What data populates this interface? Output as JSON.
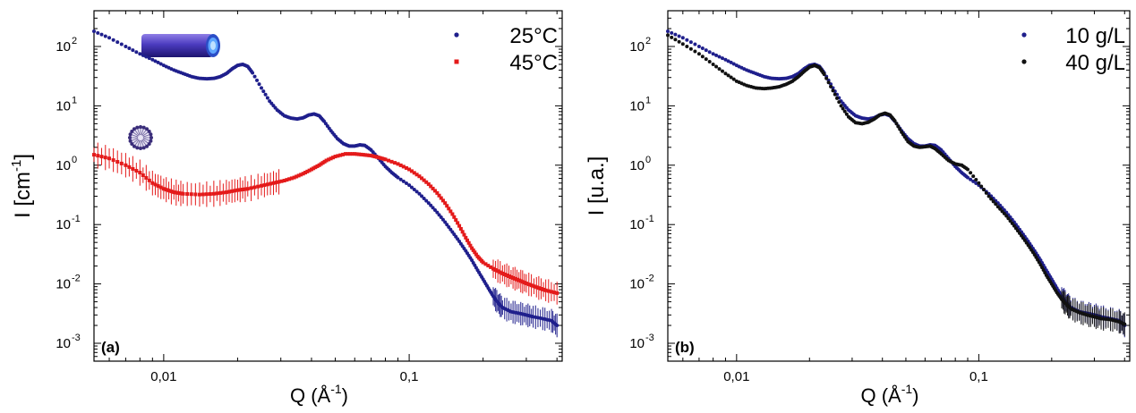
{
  "chart_data": [
    {
      "panel_label": "(a)",
      "type": "scatter",
      "xscale": "log",
      "yscale": "log",
      "xlabel": "Q (Å",
      "xlabel_sup": "-1",
      "xlabel_end": ")",
      "ylabel": "I [cm",
      "ylabel_sup": "-1",
      "ylabel_end": "]",
      "xlim": [
        0.0052,
        0.42
      ],
      "ylim": [
        0.0005,
        400
      ],
      "xticks": [
        {
          "value": 0.01,
          "label": "0,01"
        },
        {
          "value": 0.1,
          "label": "0,1"
        }
      ],
      "yticks": [
        {
          "value": 0.001,
          "base": "10",
          "exp": "-3"
        },
        {
          "value": 0.01,
          "base": "10",
          "exp": "-2"
        },
        {
          "value": 0.1,
          "base": "10",
          "exp": "-1"
        },
        {
          "value": 1,
          "base": "10",
          "exp": "0"
        },
        {
          "value": 10,
          "base": "10",
          "exp": "1"
        },
        {
          "value": 100,
          "base": "10",
          "exp": "2"
        }
      ],
      "legend_position": "top-right",
      "series": [
        {
          "name": "25°C",
          "color": "#1f1f8c",
          "marker": "circle",
          "points": [
            [
              0.0052,
              180
            ],
            [
              0.006,
              140
            ],
            [
              0.007,
              100
            ],
            [
              0.008,
              75
            ],
            [
              0.009,
              60
            ],
            [
              0.01,
              48
            ],
            [
              0.011,
              40
            ],
            [
              0.012,
              35
            ],
            [
              0.013,
              31
            ],
            [
              0.014,
              29
            ],
            [
              0.015,
              28.5
            ],
            [
              0.016,
              29
            ],
            [
              0.017,
              31
            ],
            [
              0.018,
              35
            ],
            [
              0.019,
              42
            ],
            [
              0.02,
              48
            ],
            [
              0.021,
              50
            ],
            [
              0.022,
              46
            ],
            [
              0.023,
              36
            ],
            [
              0.025,
              20
            ],
            [
              0.027,
              12
            ],
            [
              0.029,
              8.5
            ],
            [
              0.031,
              6.8
            ],
            [
              0.033,
              6.2
            ],
            [
              0.035,
              6
            ],
            [
              0.037,
              6.3
            ],
            [
              0.039,
              7
            ],
            [
              0.041,
              7.3
            ],
            [
              0.043,
              6.8
            ],
            [
              0.045,
              5.5
            ],
            [
              0.048,
              3.8
            ],
            [
              0.051,
              2.8
            ],
            [
              0.054,
              2.3
            ],
            [
              0.057,
              2.1
            ],
            [
              0.06,
              2.1
            ],
            [
              0.063,
              2.2
            ],
            [
              0.066,
              2.15
            ],
            [
              0.07,
              1.8
            ],
            [
              0.075,
              1.3
            ],
            [
              0.08,
              0.95
            ],
            [
              0.085,
              0.75
            ],
            [
              0.09,
              0.62
            ],
            [
              0.1,
              0.46
            ],
            [
              0.11,
              0.33
            ],
            [
              0.12,
              0.23
            ],
            [
              0.13,
              0.16
            ],
            [
              0.14,
              0.11
            ],
            [
              0.15,
              0.075
            ],
            [
              0.16,
              0.052
            ],
            [
              0.17,
              0.036
            ],
            [
              0.18,
              0.025
            ],
            [
              0.19,
              0.017
            ],
            [
              0.2,
              0.012
            ],
            [
              0.21,
              0.0085
            ],
            [
              0.22,
              0.0062
            ],
            [
              0.23,
              0.0048
            ],
            [
              0.24,
              0.004
            ],
            [
              0.26,
              0.0034
            ],
            [
              0.28,
              0.0032
            ],
            [
              0.3,
              0.003
            ],
            [
              0.32,
              0.0028
            ],
            [
              0.35,
              0.0026
            ],
            [
              0.38,
              0.0024
            ],
            [
              0.4,
              0.002
            ]
          ]
        },
        {
          "name": "45°C",
          "color": "#e41a1a",
          "marker": "square",
          "points": [
            [
              0.0052,
              1.5
            ],
            [
              0.006,
              1.3
            ],
            [
              0.007,
              1.0
            ],
            [
              0.008,
              0.75
            ],
            [
              0.009,
              0.5
            ],
            [
              0.01,
              0.4
            ],
            [
              0.011,
              0.35
            ],
            [
              0.012,
              0.33
            ],
            [
              0.014,
              0.32
            ],
            [
              0.016,
              0.33
            ],
            [
              0.018,
              0.35
            ],
            [
              0.02,
              0.38
            ],
            [
              0.022,
              0.4
            ],
            [
              0.025,
              0.45
            ],
            [
              0.028,
              0.5
            ],
            [
              0.031,
              0.55
            ],
            [
              0.034,
              0.62
            ],
            [
              0.037,
              0.72
            ],
            [
              0.04,
              0.85
            ],
            [
              0.043,
              1.0
            ],
            [
              0.046,
              1.2
            ],
            [
              0.05,
              1.4
            ],
            [
              0.055,
              1.55
            ],
            [
              0.06,
              1.55
            ],
            [
              0.065,
              1.5
            ],
            [
              0.07,
              1.45
            ],
            [
              0.075,
              1.35
            ],
            [
              0.08,
              1.25
            ],
            [
              0.09,
              1.05
            ],
            [
              0.1,
              0.85
            ],
            [
              0.11,
              0.65
            ],
            [
              0.12,
              0.48
            ],
            [
              0.13,
              0.34
            ],
            [
              0.14,
              0.23
            ],
            [
              0.15,
              0.15
            ],
            [
              0.16,
              0.095
            ],
            [
              0.17,
              0.06
            ],
            [
              0.18,
              0.04
            ],
            [
              0.19,
              0.029
            ],
            [
              0.2,
              0.023
            ],
            [
              0.22,
              0.018
            ],
            [
              0.24,
              0.015
            ],
            [
              0.26,
              0.013
            ],
            [
              0.28,
              0.0115
            ],
            [
              0.3,
              0.0102
            ],
            [
              0.33,
              0.0088
            ],
            [
              0.36,
              0.0078
            ],
            [
              0.4,
              0.007
            ]
          ]
        }
      ]
    },
    {
      "panel_label": "(b)",
      "type": "scatter",
      "xscale": "log",
      "yscale": "log",
      "xlabel": "Q (Å",
      "xlabel_sup": "-1",
      "xlabel_end": ")",
      "ylabel": "I [u.a.]",
      "ylabel_sup": "",
      "ylabel_end": "",
      "xlim": [
        0.0052,
        0.42
      ],
      "ylim": [
        0.0005,
        400
      ],
      "xticks": [
        {
          "value": 0.01,
          "label": "0,01"
        },
        {
          "value": 0.1,
          "label": "0,1"
        }
      ],
      "yticks": [
        {
          "value": 0.001,
          "base": "10",
          "exp": "-3"
        },
        {
          "value": 0.01,
          "base": "10",
          "exp": "-2"
        },
        {
          "value": 0.1,
          "base": "10",
          "exp": "-1"
        },
        {
          "value": 1,
          "base": "10",
          "exp": "0"
        },
        {
          "value": 10,
          "base": "10",
          "exp": "1"
        },
        {
          "value": 100,
          "base": "10",
          "exp": "2"
        }
      ],
      "legend_position": "top-right",
      "series": [
        {
          "name": "10 g/L",
          "color": "#1f1f8c",
          "marker": "circle",
          "points": [
            [
              0.0052,
              180
            ],
            [
              0.006,
              140
            ],
            [
              0.007,
              100
            ],
            [
              0.008,
              75
            ],
            [
              0.009,
              60
            ],
            [
              0.01,
              48
            ],
            [
              0.011,
              40
            ],
            [
              0.012,
              35
            ],
            [
              0.013,
              31
            ],
            [
              0.014,
              29
            ],
            [
              0.015,
              28.5
            ],
            [
              0.016,
              29
            ],
            [
              0.017,
              31
            ],
            [
              0.018,
              35
            ],
            [
              0.019,
              42
            ],
            [
              0.02,
              48
            ],
            [
              0.021,
              50
            ],
            [
              0.022,
              46
            ],
            [
              0.023,
              36
            ],
            [
              0.025,
              20
            ],
            [
              0.027,
              12
            ],
            [
              0.029,
              8.5
            ],
            [
              0.031,
              6.8
            ],
            [
              0.033,
              6.2
            ],
            [
              0.035,
              6
            ],
            [
              0.037,
              6.3
            ],
            [
              0.039,
              7
            ],
            [
              0.041,
              7.3
            ],
            [
              0.043,
              6.8
            ],
            [
              0.045,
              5.5
            ],
            [
              0.048,
              3.8
            ],
            [
              0.051,
              2.8
            ],
            [
              0.054,
              2.3
            ],
            [
              0.057,
              2.1
            ],
            [
              0.06,
              2.1
            ],
            [
              0.063,
              2.2
            ],
            [
              0.066,
              2.15
            ],
            [
              0.07,
              1.8
            ],
            [
              0.075,
              1.3
            ],
            [
              0.08,
              0.95
            ],
            [
              0.085,
              0.75
            ],
            [
              0.09,
              0.62
            ],
            [
              0.1,
              0.46
            ],
            [
              0.11,
              0.33
            ],
            [
              0.12,
              0.23
            ],
            [
              0.13,
              0.16
            ],
            [
              0.14,
              0.11
            ],
            [
              0.15,
              0.075
            ],
            [
              0.16,
              0.052
            ],
            [
              0.17,
              0.036
            ],
            [
              0.18,
              0.025
            ],
            [
              0.19,
              0.017
            ],
            [
              0.2,
              0.012
            ],
            [
              0.21,
              0.0085
            ],
            [
              0.22,
              0.0062
            ],
            [
              0.23,
              0.0048
            ],
            [
              0.24,
              0.004
            ],
            [
              0.26,
              0.0034
            ],
            [
              0.28,
              0.0032
            ],
            [
              0.3,
              0.003
            ],
            [
              0.32,
              0.0028
            ],
            [
              0.35,
              0.0026
            ],
            [
              0.38,
              0.0024
            ],
            [
              0.4,
              0.002
            ]
          ]
        },
        {
          "name": "40 g/L",
          "color": "#111111",
          "marker": "circle",
          "points": [
            [
              0.0052,
              155
            ],
            [
              0.006,
              110
            ],
            [
              0.007,
              75
            ],
            [
              0.008,
              50
            ],
            [
              0.009,
              35
            ],
            [
              0.01,
              26
            ],
            [
              0.011,
              22
            ],
            [
              0.012,
              20
            ],
            [
              0.013,
              19.5
            ],
            [
              0.014,
              20
            ],
            [
              0.015,
              21
            ],
            [
              0.016,
              23
            ],
            [
              0.017,
              26
            ],
            [
              0.018,
              31
            ],
            [
              0.019,
              38
            ],
            [
              0.02,
              45
            ],
            [
              0.021,
              48
            ],
            [
              0.022,
              44
            ],
            [
              0.023,
              34
            ],
            [
              0.025,
              18
            ],
            [
              0.027,
              10
            ],
            [
              0.029,
              6.5
            ],
            [
              0.031,
              5.2
            ],
            [
              0.033,
              5
            ],
            [
              0.035,
              5.3
            ],
            [
              0.037,
              6
            ],
            [
              0.039,
              7
            ],
            [
              0.041,
              7.5
            ],
            [
              0.043,
              7
            ],
            [
              0.045,
              5.6
            ],
            [
              0.048,
              3.6
            ],
            [
              0.051,
              2.5
            ],
            [
              0.054,
              2.1
            ],
            [
              0.057,
              2
            ],
            [
              0.06,
              2.05
            ],
            [
              0.063,
              2.1
            ],
            [
              0.066,
              1.9
            ],
            [
              0.07,
              1.55
            ],
            [
              0.075,
              1.2
            ],
            [
              0.08,
              1.05
            ],
            [
              0.085,
              1.0
            ],
            [
              0.09,
              0.85
            ],
            [
              0.1,
              0.5
            ],
            [
              0.11,
              0.3
            ],
            [
              0.12,
              0.2
            ],
            [
              0.13,
              0.14
            ],
            [
              0.14,
              0.095
            ],
            [
              0.15,
              0.065
            ],
            [
              0.16,
              0.045
            ],
            [
              0.17,
              0.031
            ],
            [
              0.18,
              0.021
            ],
            [
              0.19,
              0.014
            ],
            [
              0.2,
              0.01
            ],
            [
              0.21,
              0.0072
            ],
            [
              0.22,
              0.0055
            ],
            [
              0.23,
              0.0045
            ],
            [
              0.24,
              0.0038
            ],
            [
              0.26,
              0.0033
            ],
            [
              0.28,
              0.003
            ],
            [
              0.3,
              0.0028
            ],
            [
              0.32,
              0.0026
            ],
            [
              0.35,
              0.0025
            ],
            [
              0.38,
              0.0023
            ],
            [
              0.4,
              0.0021
            ]
          ]
        }
      ]
    }
  ]
}
